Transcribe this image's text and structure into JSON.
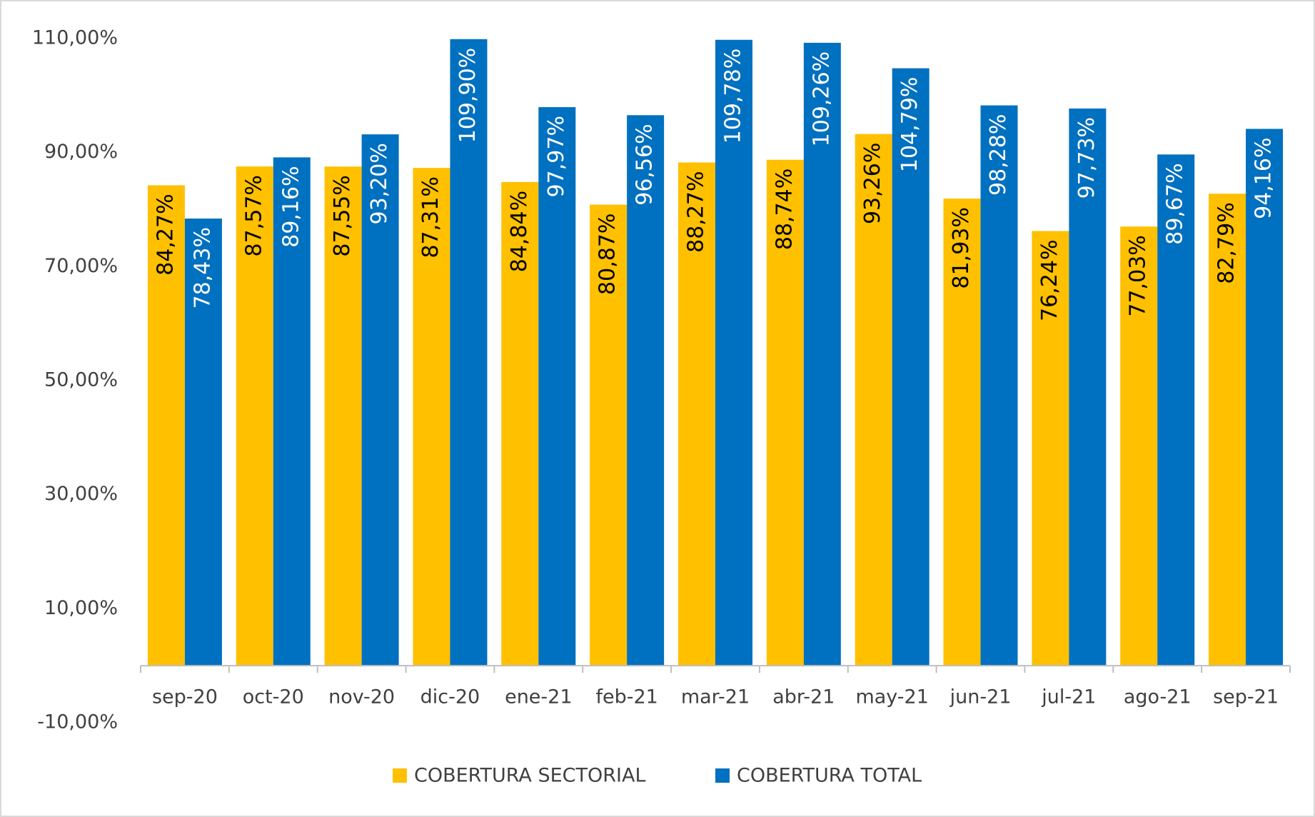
{
  "chart_data": {
    "type": "bar",
    "categories": [
      "sep-20",
      "oct-20",
      "nov-20",
      "dic-20",
      "ene-21",
      "feb-21",
      "mar-21",
      "abr-21",
      "may-21",
      "jun-21",
      "jul-21",
      "ago-21",
      "sep-21"
    ],
    "series": [
      {
        "name": "COBERTURA SECTORIAL",
        "color": "#FFC000",
        "label_color": "#000000",
        "values": [
          84.27,
          87.57,
          87.55,
          87.31,
          84.84,
          80.87,
          88.27,
          88.74,
          93.26,
          81.93,
          76.24,
          77.03,
          82.79
        ],
        "value_labels": [
          "84,27%",
          "87,57%",
          "87,55%",
          "87,31%",
          "84,84%",
          "80,87%",
          "88,27%",
          "88,74%",
          "93,26%",
          "81,93%",
          "76,24%",
          "77,03%",
          "82,79%"
        ]
      },
      {
        "name": "COBERTURA TOTAL",
        "color": "#0070C0",
        "label_color": "#FFFFFF",
        "values": [
          78.43,
          89.16,
          93.2,
          109.9,
          97.97,
          96.56,
          109.78,
          109.26,
          104.79,
          98.28,
          97.73,
          89.67,
          94.16
        ],
        "value_labels": [
          "78,43%",
          "89,16%",
          "93,20%",
          "109,90%",
          "97,97%",
          "96,56%",
          "109,78%",
          "109,26%",
          "104,79%",
          "98,28%",
          "97,73%",
          "89,67%",
          "94,16%"
        ]
      }
    ],
    "ylim": [
      -10,
      110
    ],
    "yticks": [
      {
        "value": -10,
        "label": "-10,00%"
      },
      {
        "value": 10,
        "label": "10,00%"
      },
      {
        "value": 30,
        "label": "30,00%"
      },
      {
        "value": 50,
        "label": "50,00%"
      },
      {
        "value": 70,
        "label": "70,00%"
      },
      {
        "value": 90,
        "label": "90,00%"
      },
      {
        "value": 110,
        "label": "110,00%"
      }
    ],
    "grid": false,
    "legend": "bottom"
  }
}
